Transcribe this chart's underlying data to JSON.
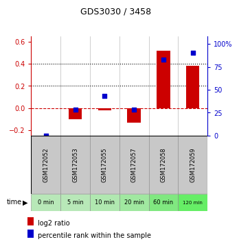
{
  "title": "GDS3030 / 3458",
  "categories": [
    "GSM172052",
    "GSM172053",
    "GSM172055",
    "GSM172057",
    "GSM172058",
    "GSM172059"
  ],
  "time_labels": [
    "0 min",
    "5 min",
    "10 min",
    "20 min",
    "60 min",
    "120 min"
  ],
  "log2_ratio": [
    0.0,
    -0.1,
    -0.02,
    -0.13,
    0.52,
    0.38
  ],
  "percentile_rank": [
    0.0,
    28.0,
    43.0,
    28.0,
    83.0,
    90.0
  ],
  "ylim_left": [
    -0.25,
    0.65
  ],
  "ylim_right": [
    0,
    108.33
  ],
  "yticks_left": [
    -0.2,
    0.0,
    0.2,
    0.4,
    0.6
  ],
  "yticks_right": [
    0,
    25,
    50,
    75,
    100
  ],
  "ytick_labels_right": [
    "0",
    "25",
    "50",
    "75",
    "100%"
  ],
  "bar_color": "#cc0000",
  "square_color": "#0000cc",
  "zero_line_color": "#cc0000",
  "grid_color": "#000000",
  "bg_color": "#ffffff",
  "bar_bg_color": "#c8c8c8",
  "time_bg_color": "#aaddaa",
  "time_bg_bright": "#88ee88",
  "legend_bar_label": "log2 ratio",
  "legend_sq_label": "percentile rank within the sample",
  "left_tick_color": "#cc0000",
  "right_tick_color": "#0000cc",
  "title_fontsize": 9,
  "tick_fontsize": 7,
  "label_fontsize": 6,
  "time_fontsize": 6
}
